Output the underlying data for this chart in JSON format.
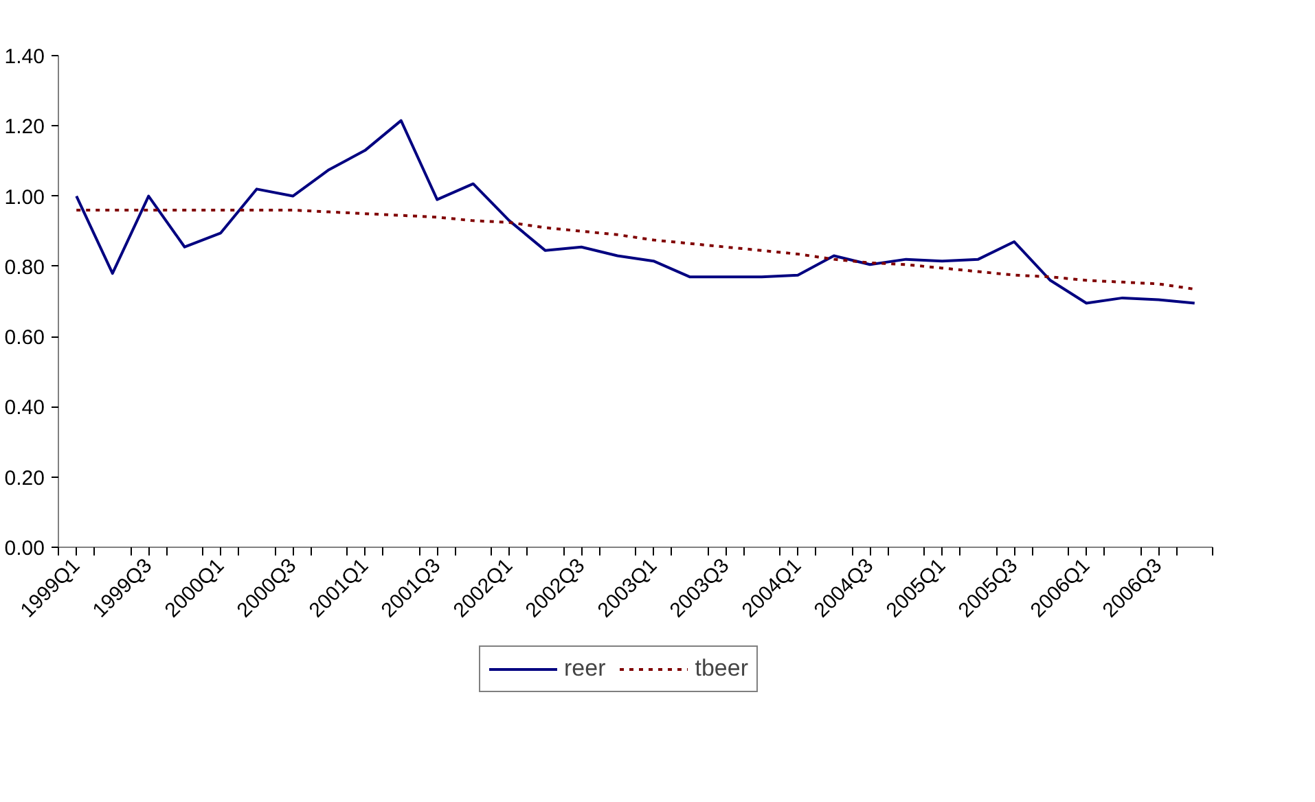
{
  "chart_data": {
    "type": "line",
    "categories": [
      "1999Q1",
      null,
      "1999Q3",
      null,
      "2000Q1",
      null,
      "2000Q3",
      null,
      "2001Q1",
      null,
      "2001Q3",
      null,
      "2002Q1",
      null,
      "2002Q3",
      null,
      "2003Q1",
      null,
      "2003Q3",
      null,
      "2004Q1",
      null,
      "2004Q3",
      null,
      "2005Q1",
      null,
      "2005Q3",
      null,
      "2006Q1",
      null,
      "2006Q3",
      null
    ],
    "series": [
      {
        "name": "reer",
        "color": "#000080",
        "line_style": "solid",
        "values": [
          1.0,
          0.78,
          1.0,
          0.855,
          0.895,
          1.02,
          1.0,
          1.075,
          1.13,
          1.215,
          0.99,
          1.035,
          0.93,
          0.845,
          0.855,
          0.83,
          0.815,
          0.77,
          0.77,
          0.77,
          0.775,
          0.83,
          0.805,
          0.82,
          0.815,
          0.82,
          0.87,
          0.76,
          0.695,
          0.71,
          0.705,
          0.695
        ]
      },
      {
        "name": "tbeer",
        "color": "#800000",
        "line_style": "dotted",
        "values": [
          0.96,
          0.96,
          0.96,
          0.96,
          0.96,
          0.96,
          0.96,
          0.955,
          0.95,
          0.945,
          0.94,
          0.93,
          0.925,
          0.91,
          0.9,
          0.89,
          0.875,
          0.865,
          0.855,
          0.845,
          0.835,
          0.82,
          0.81,
          0.805,
          0.795,
          0.785,
          0.775,
          0.77,
          0.76,
          0.755,
          0.75,
          0.735
        ]
      }
    ],
    "ylim": [
      0,
      1.4
    ],
    "yticks": [
      {
        "value": 0,
        "label": "0.00"
      },
      {
        "value": 0.2,
        "label": "0.20"
      },
      {
        "value": 0.4,
        "label": "0.40"
      },
      {
        "value": 0.6,
        "label": "0.60"
      },
      {
        "value": 0.8,
        "label": "0.80"
      },
      {
        "value": 1.0,
        "label": "1.00"
      },
      {
        "value": 1.2,
        "label": "1.20"
      },
      {
        "value": 1.4,
        "label": "1.40"
      }
    ],
    "grid": false,
    "legend": "bottom"
  }
}
